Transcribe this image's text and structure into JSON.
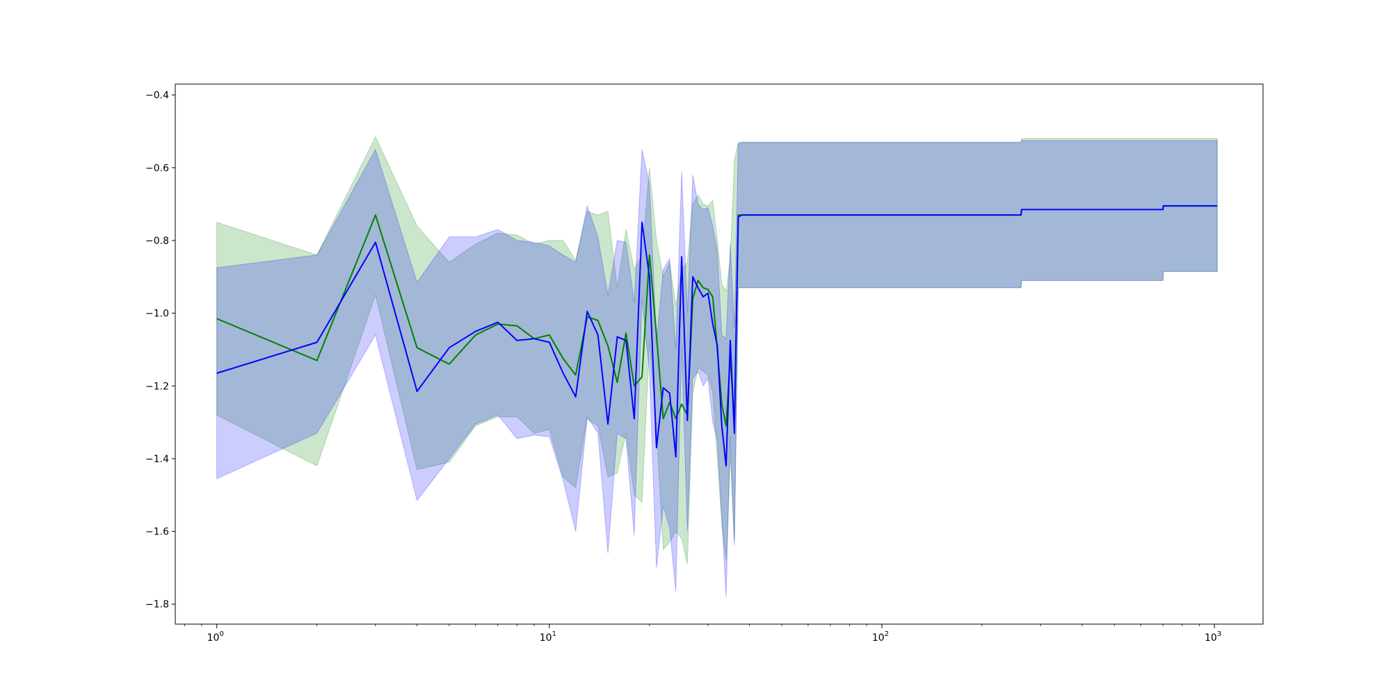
{
  "chart_data": {
    "type": "line",
    "title": "",
    "xlabel": "",
    "ylabel": "",
    "xscale": "log",
    "xlim": [
      0.75,
      1400
    ],
    "ylim": [
      -1.855,
      -0.37
    ],
    "grid": false,
    "legend": "none",
    "x_ticks": [
      {
        "value": 1,
        "base": "10",
        "exp": "0"
      },
      {
        "value": 10,
        "base": "10",
        "exp": "1"
      },
      {
        "value": 100,
        "base": "10",
        "exp": "2"
      },
      {
        "value": 1000,
        "base": "10",
        "exp": "3"
      }
    ],
    "y_ticks": [
      {
        "value": -1.8,
        "label": "−1.8"
      },
      {
        "value": -1.6,
        "label": "−1.6"
      },
      {
        "value": -1.4,
        "label": "−1.4"
      },
      {
        "value": -1.2,
        "label": "−1.2"
      },
      {
        "value": -1.0,
        "label": "−1.0"
      },
      {
        "value": -0.8,
        "label": "−0.8"
      },
      {
        "value": -0.6,
        "label": "−0.6"
      },
      {
        "value": -0.4,
        "label": "−0.4"
      }
    ],
    "series": [
      {
        "color": "#008000",
        "band_color": "#008000",
        "x": [
          1,
          2,
          3,
          4,
          5,
          6,
          7,
          8,
          9,
          10,
          11,
          12,
          13,
          14,
          15,
          16,
          17,
          18,
          19,
          20,
          21,
          22,
          23,
          24,
          25,
          26,
          27,
          28,
          29,
          30,
          31,
          32,
          33,
          34,
          35,
          36,
          37,
          38,
          39,
          262,
          263,
          700,
          702,
          1020
        ],
        "y": [
          -1.015,
          -1.13,
          -0.73,
          -1.095,
          -1.14,
          -1.06,
          -1.03,
          -1.035,
          -1.07,
          -1.06,
          -1.125,
          -1.17,
          -1.01,
          -1.02,
          -1.09,
          -1.19,
          -1.055,
          -1.2,
          -1.175,
          -0.84,
          -1.06,
          -1.29,
          -1.245,
          -1.29,
          -1.25,
          -1.28,
          -0.96,
          -0.91,
          -0.93,
          -0.935,
          -0.955,
          -1.1,
          -1.25,
          -1.31,
          -1.12,
          -1.3,
          -0.73,
          -0.73,
          -0.73,
          -0.73,
          -0.715,
          -0.715,
          -0.705,
          -0.705
        ],
        "upper": [
          -0.75,
          -0.84,
          -0.515,
          -0.76,
          -0.86,
          -0.81,
          -0.78,
          -0.785,
          -0.81,
          -0.8,
          -0.8,
          -0.855,
          -0.72,
          -0.73,
          -0.72,
          -0.93,
          -0.77,
          -0.88,
          -0.84,
          -0.6,
          -0.8,
          -0.9,
          -0.86,
          -0.98,
          -0.88,
          -0.86,
          -0.7,
          -0.675,
          -0.7,
          -0.705,
          -0.69,
          -0.8,
          -0.92,
          -0.94,
          -0.85,
          -0.58,
          -0.53,
          -0.53,
          -0.53,
          -0.53,
          -0.52,
          -0.52,
          -0.52,
          -0.52
        ],
        "lower": [
          -1.28,
          -1.42,
          -0.95,
          -1.43,
          -1.41,
          -1.31,
          -1.285,
          -1.285,
          -1.33,
          -1.32,
          -1.45,
          -1.48,
          -1.29,
          -1.31,
          -1.45,
          -1.44,
          -1.33,
          -1.5,
          -1.52,
          -1.08,
          -1.32,
          -1.65,
          -1.63,
          -1.6,
          -1.62,
          -1.69,
          -1.22,
          -1.15,
          -1.16,
          -1.17,
          -1.22,
          -1.4,
          -1.58,
          -1.68,
          -1.39,
          -1.63,
          -0.93,
          -0.93,
          -0.93,
          -0.93,
          -0.91,
          -0.91,
          -0.885,
          -0.885
        ]
      },
      {
        "color": "#0000ff",
        "band_color": "#0000ff",
        "x": [
          1,
          2,
          3,
          4,
          5,
          6,
          7,
          8,
          9,
          10,
          11,
          12,
          13,
          14,
          15,
          16,
          17,
          18,
          19,
          20,
          21,
          22,
          23,
          24,
          25,
          26,
          27,
          28,
          29,
          30,
          31,
          32,
          33,
          34,
          35,
          36,
          37,
          38,
          39,
          262,
          263,
          700,
          702,
          1020
        ],
        "y": [
          -1.165,
          -1.08,
          -0.805,
          -1.215,
          -1.095,
          -1.05,
          -1.025,
          -1.075,
          -1.07,
          -1.08,
          -1.165,
          -1.23,
          -0.995,
          -1.06,
          -1.305,
          -1.065,
          -1.075,
          -1.29,
          -0.75,
          -0.9,
          -1.37,
          -1.205,
          -1.22,
          -1.395,
          -0.845,
          -1.295,
          -0.9,
          -0.93,
          -0.955,
          -0.945,
          -1.03,
          -1.09,
          -1.31,
          -1.42,
          -1.075,
          -1.33,
          -0.735,
          -0.73,
          -0.73,
          -0.73,
          -0.715,
          -0.715,
          -0.705,
          -0.705
        ],
        "upper": [
          -0.875,
          -0.84,
          -0.55,
          -0.915,
          -0.79,
          -0.79,
          -0.77,
          -0.8,
          -0.805,
          -0.815,
          -0.84,
          -0.86,
          -0.705,
          -0.79,
          -0.95,
          -0.8,
          -0.805,
          -0.97,
          -0.55,
          -0.645,
          -1.08,
          -0.88,
          -0.85,
          -1.1,
          -0.61,
          -1.0,
          -0.62,
          -0.7,
          -0.715,
          -0.71,
          -0.76,
          -0.83,
          -1.06,
          -1.07,
          -0.81,
          -1.04,
          -0.535,
          -0.53,
          -0.53,
          -0.53,
          -0.525,
          -0.525,
          -0.525,
          -0.525
        ],
        "lower": [
          -1.455,
          -1.33,
          -1.06,
          -1.515,
          -1.4,
          -1.305,
          -1.28,
          -1.345,
          -1.335,
          -1.34,
          -1.46,
          -1.6,
          -1.285,
          -1.33,
          -1.66,
          -1.33,
          -1.345,
          -1.61,
          -0.96,
          -1.16,
          -1.7,
          -1.53,
          -1.59,
          -1.765,
          -1.09,
          -1.6,
          -1.18,
          -1.16,
          -1.2,
          -1.18,
          -1.3,
          -1.35,
          -1.56,
          -1.78,
          -1.34,
          -1.64,
          -0.93,
          -0.93,
          -0.93,
          -0.93,
          -0.91,
          -0.91,
          -0.885,
          -0.885
        ]
      }
    ]
  }
}
